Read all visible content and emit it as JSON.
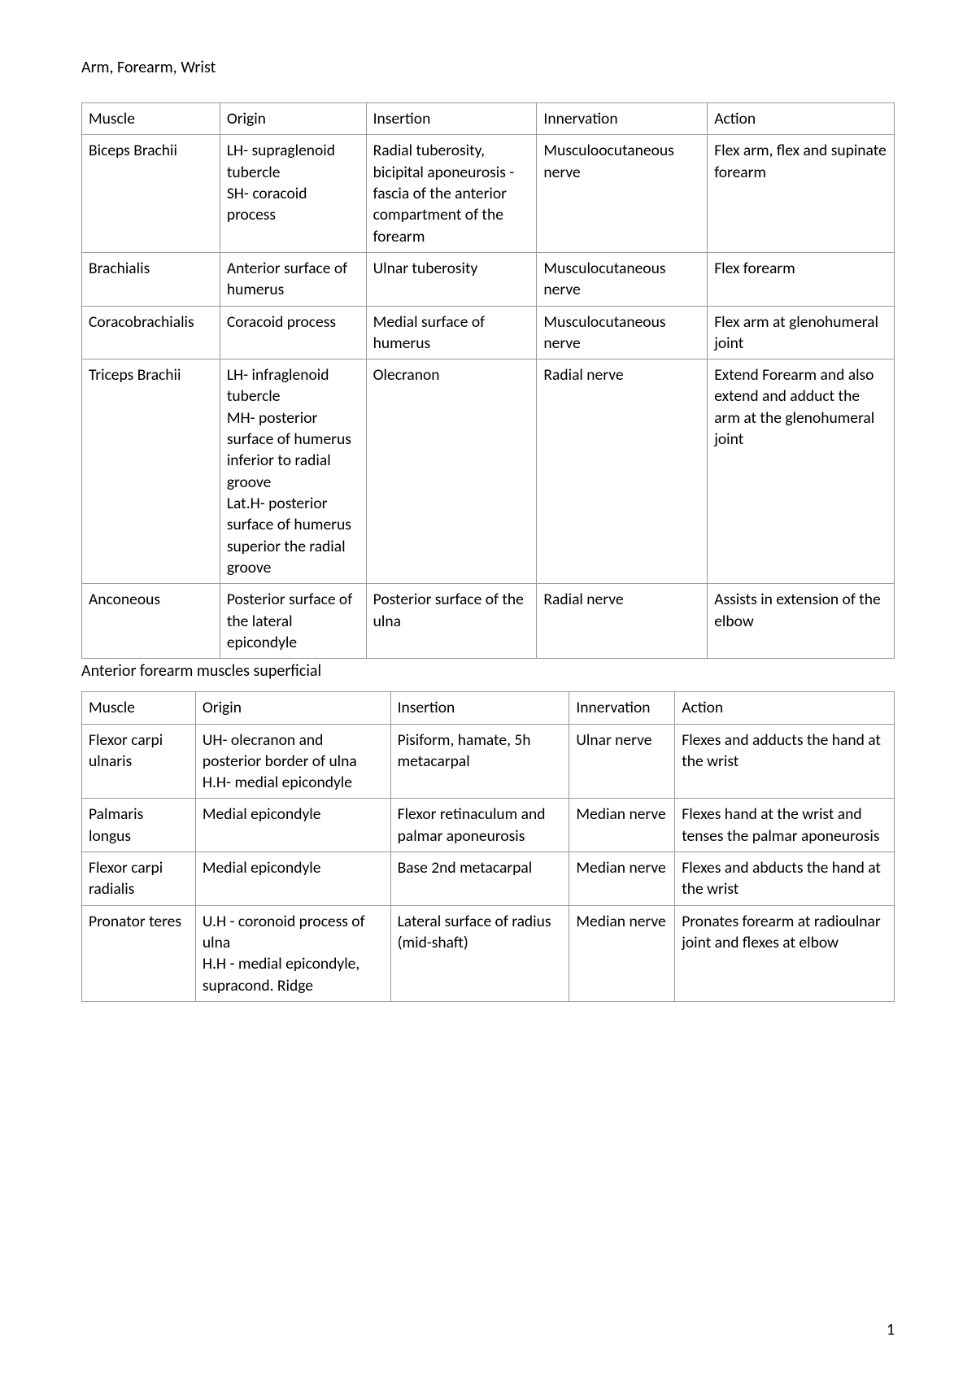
{
  "page": {
    "title": "Arm, Forearm, Wrist",
    "number": "1"
  },
  "table1": {
    "headers": {
      "c1": "Muscle",
      "c2": "Origin",
      "c3": "Insertion",
      "c4": "Innervation",
      "c5": "Action"
    },
    "rows": [
      {
        "c1": "Biceps Brachii",
        "c2": "LH- supraglenoid tubercle\nSH- coracoid process",
        "c3": "Radial tuberosity, bicipital aponeurosis - fascia of the anterior compartment of the forearm",
        "c4": "Musculoocutaneous nerve",
        "c5": "Flex arm, flex and supinate forearm"
      },
      {
        "c1": "Brachialis",
        "c2": "Anterior surface of humerus",
        "c3": "Ulnar tuberosity",
        "c4": "Musculocutaneous nerve",
        "c5": "Flex forearm"
      },
      {
        "c1": "Coracobrachialis",
        "c2": "Coracoid process",
        "c3": "Medial surface of humerus",
        "c4": "Musculocutaneous nerve",
        "c5": "Flex arm at glenohumeral joint"
      },
      {
        "c1": "Triceps Brachii",
        "c2": "LH- infraglenoid tubercle\nMH- posterior surface of humerus inferior to radial groove\nLat.H- posterior surface of humerus superior the radial groove",
        "c3": "Olecranon",
        "c4": "Radial nerve",
        "c5": "Extend Forearm and also extend and adduct the arm at the glenohumeral joint"
      },
      {
        "c1": "Anconeous",
        "c2": "Posterior surface of the lateral epicondyle",
        "c3": "Posterior surface of the ulna",
        "c4": "Radial nerve",
        "c5": "Assists in extension of the elbow"
      }
    ]
  },
  "section_label": "Anterior forearm muscles superficial",
  "table2": {
    "headers": {
      "c1": "Muscle",
      "c2": "Origin",
      "c3": "Insertion",
      "c4": "Innervation",
      "c5": "Action"
    },
    "rows": [
      {
        "c1": "Flexor carpi ulnaris",
        "c2": "UH- olecranon and posterior border of ulna\nH.H- medial epicondyle",
        "c3": "Pisiform, hamate, 5h metacarpal",
        "c4": "Ulnar nerve",
        "c5": "Flexes and adducts the hand at the wrist"
      },
      {
        "c1": "Palmaris longus",
        "c2": "Medial epicondyle",
        "c3": "Flexor retinaculum and palmar aponeurosis",
        "c4": "Median nerve",
        "c5": "Flexes hand at the wrist and tenses the palmar aponeurosis"
      },
      {
        "c1": "Flexor carpi radialis",
        "c2": "Medial epicondyle",
        "c3": "Base 2nd metacarpal",
        "c4": "Median nerve",
        "c5": "Flexes and abducts the hand at the wrist"
      },
      {
        "c1": "Pronator teres",
        "c2": "U.H - coronoid process of ulna\nH.H - medial epicondyle, supracond. Ridge",
        "c3": "Lateral surface of radius (mid-shaft)",
        "c4": "Median nerve",
        "c5": "Pronates forearm at radioulnar joint and flexes at elbow"
      }
    ]
  }
}
